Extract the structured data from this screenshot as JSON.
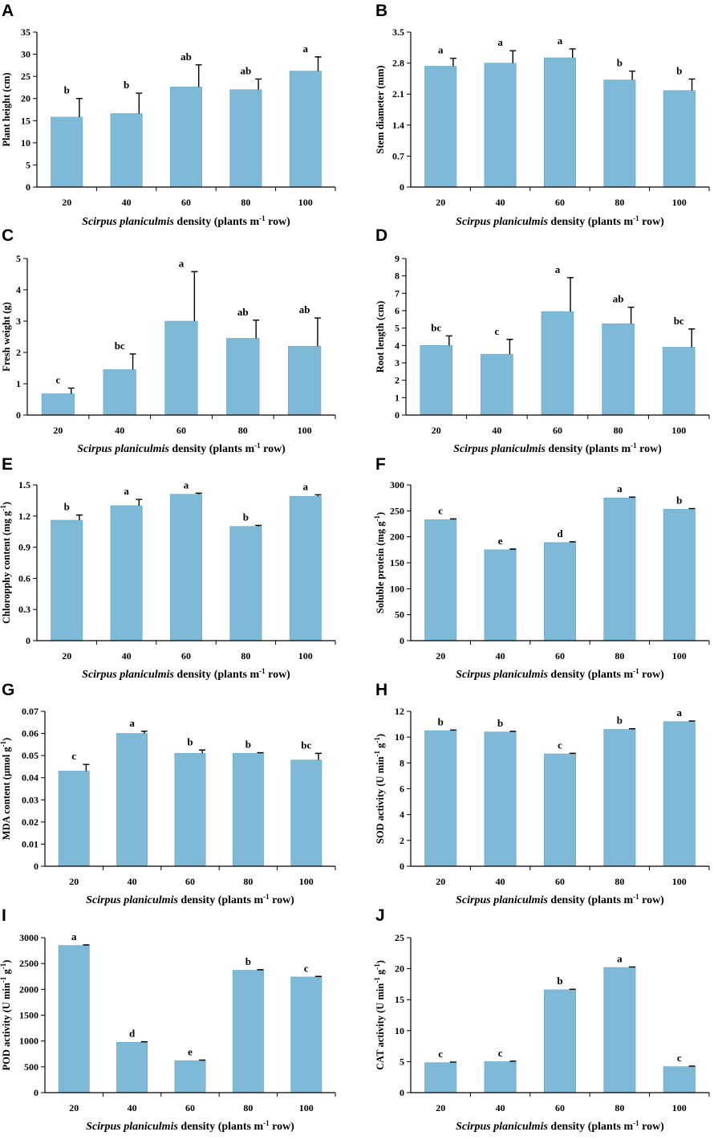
{
  "colors": {
    "bar": "#7fb9d8",
    "axis": "#000000"
  },
  "chart_data": [
    {
      "panel": "A",
      "type": "bar",
      "categories": [
        "20",
        "40",
        "60",
        "80",
        "100"
      ],
      "values": [
        15.8,
        16.6,
        22.6,
        22.0,
        26.2
      ],
      "errors": [
        4.2,
        4.6,
        5.0,
        2.4,
        3.2
      ],
      "letters": [
        "b",
        "b",
        "ab",
        "ab",
        "a"
      ],
      "ylabel": "Plant height (cm)",
      "ylim": [
        0,
        35
      ],
      "yticks": [
        "0",
        "5",
        "10",
        "15",
        "20",
        "25",
        "30",
        "35"
      ],
      "xlabel": {
        "italic": "Scirpus planiculmis",
        "rest": " density (plants m",
        "sup": "-1",
        "end": " row)"
      }
    },
    {
      "panel": "B",
      "type": "bar",
      "categories": [
        "20",
        "40",
        "60",
        "80",
        "100"
      ],
      "values": [
        2.73,
        2.8,
        2.92,
        2.42,
        2.18
      ],
      "errors": [
        0.18,
        0.28,
        0.2,
        0.2,
        0.26
      ],
      "letters": [
        "a",
        "a",
        "a",
        "b",
        "b"
      ],
      "ylabel": "Stem diameter (mm)",
      "ylim": [
        0,
        3.5
      ],
      "yticks": [
        "0",
        "0.7",
        "1.4",
        "2.1",
        "2.8",
        "3.5"
      ],
      "xlabel": {
        "italic": "Scirpus planiculmis",
        "rest": " density (plants m",
        "sup": "-1",
        "end": " row)"
      }
    },
    {
      "panel": "C",
      "type": "bar",
      "categories": [
        "20",
        "40",
        "60",
        "80",
        "100"
      ],
      "values": [
        0.68,
        1.45,
        3.0,
        2.45,
        2.2
      ],
      "errors": [
        0.18,
        0.5,
        1.58,
        0.58,
        0.9
      ],
      "letters": [
        "c",
        "bc",
        "a",
        "ab",
        "ab"
      ],
      "ylabel": "Fresh weight (g)",
      "ylim": [
        0,
        5
      ],
      "yticks": [
        "0",
        "1",
        "2",
        "3",
        "4",
        "5"
      ],
      "xlabel": {
        "italic": "Scirpus planiculmis",
        "rest": " density (plants m",
        "sup": "-1",
        "end": " row)"
      }
    },
    {
      "panel": "D",
      "type": "bar",
      "categories": [
        "20",
        "40",
        "60",
        "80",
        "100"
      ],
      "values": [
        4.0,
        3.5,
        5.95,
        5.25,
        3.9
      ],
      "errors": [
        0.55,
        0.85,
        1.95,
        0.95,
        1.05
      ],
      "letters": [
        "bc",
        "c",
        "a",
        "ab",
        "bc"
      ],
      "ylabel": "Root length (cm)",
      "ylim": [
        0,
        9
      ],
      "yticks": [
        "0",
        "1",
        "2",
        "3",
        "4",
        "5",
        "6",
        "7",
        "8",
        "9"
      ],
      "xlabel": {
        "italic": "Scirpus planiculmis",
        "rest": " density (plants m",
        "sup": "-1",
        "end": " row)"
      }
    },
    {
      "panel": "E",
      "type": "bar",
      "categories": [
        "20",
        "40",
        "60",
        "80",
        "100"
      ],
      "values": [
        1.16,
        1.3,
        1.41,
        1.1,
        1.39
      ],
      "errors": [
        0.05,
        0.06,
        0.01,
        0.01,
        0.015
      ],
      "letters": [
        "b",
        "a",
        "a",
        "b",
        "a"
      ],
      "ylabel": "Chloropphy content (mg g",
      "ylabel_sup": "-1",
      "ylabel_end": ")",
      "ylim": [
        0,
        1.5
      ],
      "yticks": [
        "0",
        "0.3",
        "0.6",
        "0.9",
        "1.2",
        "1.5"
      ],
      "xlabel": {
        "italic": "Scirpus planiculmis",
        "rest": " density (plants m",
        "sup": "-1",
        "end": " row)"
      }
    },
    {
      "panel": "F",
      "type": "bar",
      "categories": [
        "20",
        "40",
        "60",
        "80",
        "100"
      ],
      "values": [
        233,
        175,
        189,
        275,
        253
      ],
      "errors": [
        1.5,
        1.5,
        1.5,
        1.5,
        1.5
      ],
      "letters": [
        "c",
        "e",
        "d",
        "a",
        "b"
      ],
      "ylabel": "Soluble protein (mg g",
      "ylabel_sup": "-1",
      "ylabel_end": ")",
      "ylim": [
        0,
        300
      ],
      "yticks": [
        "0",
        "50",
        "100",
        "150",
        "200",
        "250",
        "300"
      ],
      "xlabel": {
        "italic": "Scirpus planiculmis",
        "rest": " density (plants m",
        "sup": "-1",
        "end": " row)"
      }
    },
    {
      "panel": "G",
      "type": "bar",
      "categories": [
        "20",
        "40",
        "60",
        "80",
        "100"
      ],
      "values": [
        0.043,
        0.06,
        0.051,
        0.051,
        0.048
      ],
      "errors": [
        0.003,
        0.001,
        0.0015,
        0.0003,
        0.003
      ],
      "letters": [
        "c",
        "a",
        "b",
        "b",
        "bc"
      ],
      "ylabel": "MDA content (μmol g",
      "ylabel_sup": "-1",
      "ylabel_end": ")",
      "ylim": [
        0,
        0.07
      ],
      "yticks": [
        "0",
        "0.01",
        "0.02",
        "0.03",
        "0.04",
        "0.05",
        "0.06",
        "0.07"
      ],
      "xlabel": {
        "italic": "Scirpus planiculmis",
        "rest": " density (plants m",
        "sup": "-1",
        "end": " row)"
      }
    },
    {
      "panel": "H",
      "type": "bar",
      "categories": [
        "20",
        "40",
        "60",
        "80",
        "100"
      ],
      "values": [
        10.5,
        10.4,
        8.7,
        10.6,
        11.2
      ],
      "errors": [
        0.05,
        0.05,
        0.05,
        0.05,
        0.05
      ],
      "letters": [
        "b",
        "b",
        "c",
        "b",
        "a"
      ],
      "ylabel": "SOD activity (U min",
      "ylabel_sup": "-1",
      "ylabel_mid": " g",
      "ylabel_sup2": "-1",
      "ylabel_end": ")",
      "ylim": [
        0,
        12
      ],
      "yticks": [
        "0",
        "2",
        "4",
        "6",
        "8",
        "10",
        "12"
      ],
      "xlabel": {
        "italic": "Scirpus planiculmis",
        "rest": " density (plants m",
        "sup": "-1",
        "end": " row)"
      }
    },
    {
      "panel": "I",
      "type": "bar",
      "categories": [
        "20",
        "40",
        "60",
        "80",
        "100"
      ],
      "values": [
        2850,
        975,
        620,
        2370,
        2240
      ],
      "errors": [
        10,
        10,
        10,
        10,
        10
      ],
      "letters": [
        "a",
        "d",
        "e",
        "b",
        "c"
      ],
      "ylabel": "POD activity (U min",
      "ylabel_sup": "-1",
      "ylabel_mid": " g",
      "ylabel_sup2": "-1",
      "ylabel_end": ")",
      "ylim": [
        0,
        3000
      ],
      "yticks": [
        "0",
        "500",
        "1000",
        "1500",
        "2000",
        "2500",
        "3000"
      ],
      "xlabel": {
        "italic": "Scirpus planiculmis",
        "rest": " density (plants m",
        "sup": "-1",
        "end": " row)"
      }
    },
    {
      "panel": "J",
      "type": "bar",
      "categories": [
        "20",
        "40",
        "60",
        "80",
        "100"
      ],
      "values": [
        4.85,
        5.0,
        16.6,
        20.2,
        4.2
      ],
      "errors": [
        0.08,
        0.08,
        0.08,
        0.08,
        0.08
      ],
      "letters": [
        "c",
        "c",
        "b",
        "a",
        "c"
      ],
      "ylabel": "CAT activity (U min",
      "ylabel_sup": "-1",
      "ylabel_mid": " g",
      "ylabel_sup2": "-1",
      "ylabel_end": ")",
      "ylim": [
        0,
        25
      ],
      "yticks": [
        "0",
        "5",
        "10",
        "15",
        "20",
        "25"
      ],
      "xlabel": {
        "italic": "Scirpus planiculmis",
        "rest": " density (plants m",
        "sup": "-1",
        "end": " row)"
      }
    }
  ]
}
